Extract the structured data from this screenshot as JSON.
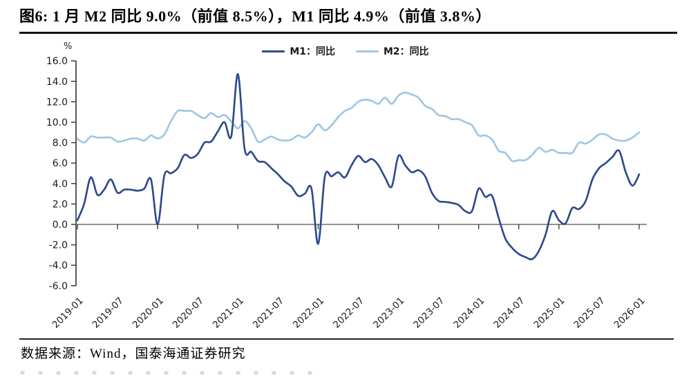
{
  "title": "图6: 1 月 M2 同比 9.0%（前值 8.5%），M1 同比 4.9%（前值 3.8%）",
  "unit_label": "%",
  "source": "数据来源：Wind，国泰海通证券研究",
  "legend": [
    {
      "label": "M1：同比",
      "color": "#2e4b8c"
    },
    {
      "label": "M2：同比",
      "color": "#9fc7e4"
    }
  ],
  "colors": {
    "m1_line": "#2e4b8c",
    "m2_line": "#9fc7e4",
    "y_axis": "#3d3d3d",
    "zero_line": "#6e6e6e",
    "tick": "#3d3d3d",
    "title_text": "#000000"
  },
  "chart_data": {
    "type": "line",
    "title": "1月M2同比9.0%（前值8.5%），M1同比4.9%（前值3.8%）",
    "xlabel": "",
    "ylabel": "%",
    "ylim": [
      -6.0,
      16.0
    ],
    "grid": false,
    "legend_position": "top-center",
    "y_tick_labels": [
      "16.0",
      "14.0",
      "12.0",
      "10.0",
      "8.0",
      "6.0",
      "4.0",
      "2.0",
      "0.0",
      "-2.0",
      "-4.0",
      "-6.0"
    ],
    "x_tick_labels": [
      "2019-01",
      "2019-07",
      "2020-01",
      "2020-07",
      "2021-01",
      "2021-07",
      "2022-01",
      "2022-07",
      "2023-01",
      "2023-07",
      "2024-01",
      "2024-07",
      "2025-01",
      "2025-07",
      "2026-01"
    ],
    "x": [
      "2019-01",
      "2019-02",
      "2019-03",
      "2019-04",
      "2019-05",
      "2019-06",
      "2019-07",
      "2019-08",
      "2019-09",
      "2019-10",
      "2019-11",
      "2019-12",
      "2020-01",
      "2020-02",
      "2020-03",
      "2020-04",
      "2020-05",
      "2020-06",
      "2020-07",
      "2020-08",
      "2020-09",
      "2020-10",
      "2020-11",
      "2020-12",
      "2021-01",
      "2021-02",
      "2021-03",
      "2021-04",
      "2021-05",
      "2021-06",
      "2021-07",
      "2021-08",
      "2021-09",
      "2021-10",
      "2021-11",
      "2021-12",
      "2022-01",
      "2022-02",
      "2022-03",
      "2022-04",
      "2022-05",
      "2022-06",
      "2022-07",
      "2022-08",
      "2022-09",
      "2022-10",
      "2022-11",
      "2022-12",
      "2023-01",
      "2023-02",
      "2023-03",
      "2023-04",
      "2023-05",
      "2023-06",
      "2023-07",
      "2023-08",
      "2023-09",
      "2023-10",
      "2023-11",
      "2023-12",
      "2024-01",
      "2024-02",
      "2024-03",
      "2024-04",
      "2024-05",
      "2024-06",
      "2024-07",
      "2024-08",
      "2024-09",
      "2024-10",
      "2024-11",
      "2024-12",
      "2025-01",
      "2025-02",
      "2025-03",
      "2025-04",
      "2025-05",
      "2025-06",
      "2025-07",
      "2025-08",
      "2025-09",
      "2025-10",
      "2025-11",
      "2025-12",
      "2026-01"
    ],
    "series": [
      {
        "name": "M1：同比",
        "color": "#2e4b8c",
        "values": [
          0.4,
          2.0,
          4.6,
          2.9,
          3.4,
          4.4,
          3.1,
          3.4,
          3.4,
          3.3,
          3.5,
          4.4,
          0.0,
          4.8,
          5.0,
          5.5,
          6.8,
          6.5,
          6.9,
          8.0,
          8.1,
          9.1,
          10.0,
          8.6,
          14.7,
          7.4,
          7.1,
          6.2,
          6.1,
          5.5,
          4.9,
          4.2,
          3.7,
          2.8,
          3.0,
          3.5,
          -1.9,
          4.7,
          4.7,
          5.1,
          4.6,
          5.8,
          6.7,
          6.1,
          6.4,
          5.8,
          4.6,
          3.7,
          6.7,
          5.8,
          5.1,
          5.3,
          4.7,
          3.1,
          2.3,
          2.2,
          2.1,
          1.9,
          1.3,
          1.3,
          3.5,
          2.7,
          2.8,
          0.6,
          -1.4,
          -2.3,
          -2.9,
          -3.2,
          -3.4,
          -2.6,
          -1.0,
          1.3,
          0.4,
          0.1,
          1.6,
          1.5,
          2.3,
          4.4,
          5.5,
          6.0,
          6.6,
          7.2,
          5.1,
          3.8,
          4.9
        ]
      },
      {
        "name": "M2：同比",
        "color": "#9fc7e4",
        "values": [
          8.4,
          8.0,
          8.6,
          8.5,
          8.5,
          8.5,
          8.1,
          8.2,
          8.4,
          8.4,
          8.2,
          8.7,
          8.4,
          8.8,
          10.1,
          11.1,
          11.1,
          11.1,
          10.7,
          10.4,
          10.9,
          10.5,
          10.7,
          10.1,
          9.4,
          10.1,
          9.4,
          8.1,
          8.3,
          8.6,
          8.3,
          8.2,
          8.3,
          8.7,
          8.5,
          9.0,
          9.8,
          9.2,
          9.7,
          10.5,
          11.1,
          11.4,
          12.0,
          12.2,
          12.1,
          11.8,
          12.4,
          11.8,
          12.6,
          12.9,
          12.7,
          12.4,
          11.6,
          11.3,
          10.7,
          10.6,
          10.3,
          10.3,
          10.0,
          9.7,
          8.7,
          8.7,
          8.3,
          7.2,
          7.0,
          6.2,
          6.3,
          6.3,
          6.8,
          7.5,
          7.1,
          7.3,
          7.0,
          7.0,
          7.0,
          8.0,
          7.9,
          8.3,
          8.8,
          8.8,
          8.4,
          8.2,
          8.2,
          8.5,
          9.0
        ]
      }
    ]
  }
}
